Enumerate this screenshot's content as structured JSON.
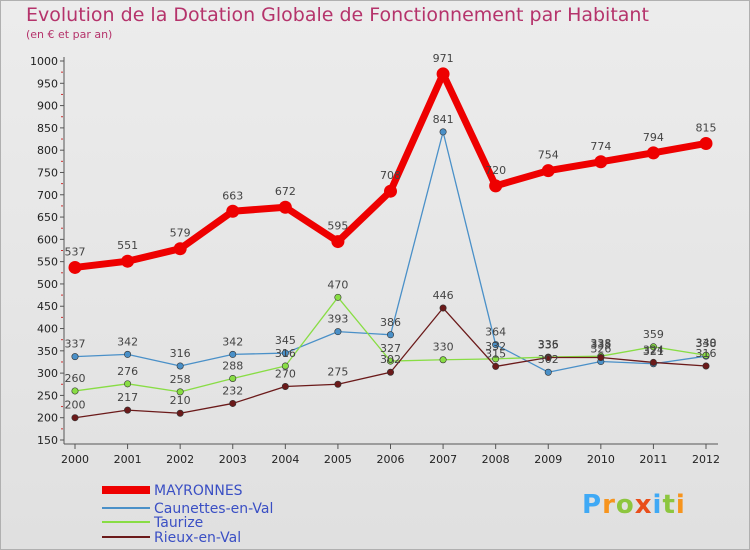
{
  "title": "Evolution de la Dotation Globale de Fonctionnement par Habitant",
  "subtitle": "(en € et par an)",
  "logo": {
    "letters": [
      "P",
      "r",
      "o",
      "x",
      "i",
      "t",
      "i"
    ],
    "colors": [
      "#3fa9f5",
      "#f7941d",
      "#8dc63f",
      "#e94e1b",
      "#3fa9f5",
      "#8dc63f",
      "#f7941d"
    ]
  },
  "chart_data": {
    "type": "line",
    "title": "Evolution de la Dotation Globale de Fonctionnement par Habitant",
    "subtitle": "(en € et par an)",
    "xlabel": "",
    "ylabel": "",
    "x": [
      "2000",
      "2001",
      "2002",
      "2003",
      "2004",
      "2005",
      "2006",
      "2007",
      "2008",
      "2009",
      "2010",
      "2011",
      "2012"
    ],
    "ylim": [
      150,
      1000
    ],
    "yticks": [
      150,
      200,
      250,
      300,
      350,
      400,
      450,
      500,
      550,
      600,
      650,
      700,
      750,
      800,
      850,
      900,
      950,
      1000
    ],
    "grid": false,
    "legend_position": "bottom-left",
    "series": [
      {
        "name": "MAYRONNES",
        "color": "#ee0000",
        "values": [
          537,
          551,
          579,
          663,
          672,
          595,
          708,
          971,
          720,
          754,
          774,
          794,
          815
        ]
      },
      {
        "name": "Caunettes-en-Val",
        "color": "#4a90c8",
        "values": [
          337,
          342,
          316,
          342,
          345,
          393,
          386,
          841,
          364,
          302,
          326,
          321,
          338
        ]
      },
      {
        "name": "Taurize",
        "color": "#88dd44",
        "values": [
          260,
          276,
          258,
          288,
          316,
          470,
          327,
          330,
          332,
          336,
          338,
          359,
          340
        ]
      },
      {
        "name": "Rieux-en-Val",
        "color": "#6b1a1a",
        "values": [
          200,
          217,
          210,
          232,
          270,
          275,
          302,
          446,
          315,
          335,
          335,
          324,
          316
        ]
      }
    ]
  }
}
